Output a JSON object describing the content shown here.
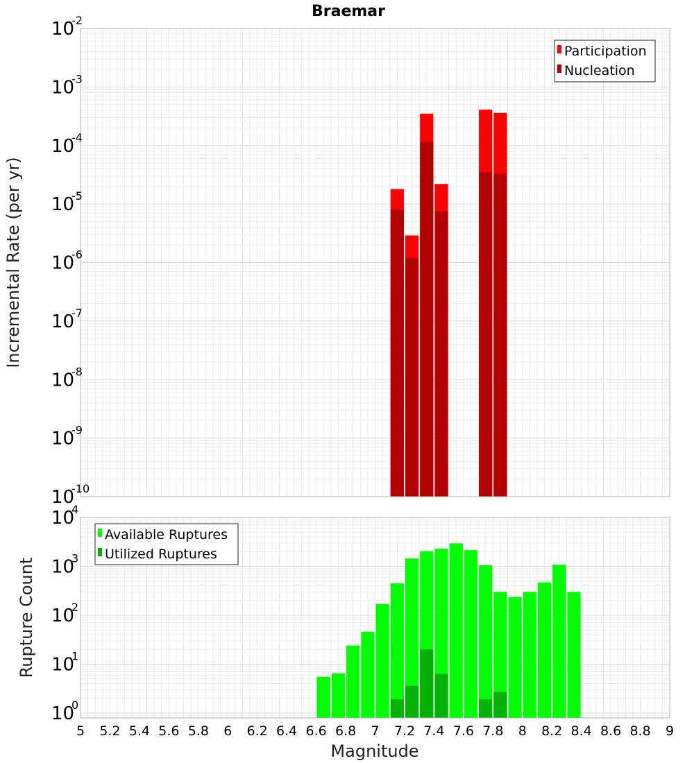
{
  "chart_data": {
    "title": "Braemar",
    "xlabel": "Magnitude",
    "xlim": [
      5,
      9
    ],
    "xticks": [
      "5",
      "5.2",
      "5.4",
      "5.6",
      "5.8",
      "6",
      "6.2",
      "6.4",
      "6.6",
      "6.8",
      "7",
      "7.2",
      "7.4",
      "7.6",
      "7.8",
      "8",
      "8.2",
      "8.4",
      "8.6",
      "8.8",
      "9"
    ],
    "bin_width": 0.1,
    "grid": true,
    "panels": [
      {
        "type": "bar",
        "ylabel": "Incremental Rate (per yr)",
        "yscale": "log",
        "ylim_exp": [
          -10,
          -2
        ],
        "yticks": [
          {
            "base": "10",
            "exp": "-2"
          },
          {
            "base": "10",
            "exp": "-3"
          },
          {
            "base": "10",
            "exp": "-4"
          },
          {
            "base": "10",
            "exp": "-5"
          },
          {
            "base": "10",
            "exp": "-6"
          },
          {
            "base": "10",
            "exp": "-7"
          },
          {
            "base": "10",
            "exp": "-8"
          },
          {
            "base": "10",
            "exp": "-9"
          },
          {
            "base": "10",
            "exp": "-10"
          }
        ],
        "legend_position": "top-right",
        "series": [
          {
            "name": "Participation",
            "color": "#ff0000",
            "points": [
              {
                "x": 7.15,
                "y": 1.8e-05
              },
              {
                "x": 7.25,
                "y": 2.9e-06
              },
              {
                "x": 7.35,
                "y": 0.00035
              },
              {
                "x": 7.45,
                "y": 2.2e-05
              },
              {
                "x": 7.75,
                "y": 0.00041
              },
              {
                "x": 7.85,
                "y": 0.00036
              }
            ]
          },
          {
            "name": "Nucleation",
            "color": "#b30000",
            "points": [
              {
                "x": 7.15,
                "y": 8e-06
              },
              {
                "x": 7.25,
                "y": 1.2e-06
              },
              {
                "x": 7.35,
                "y": 0.000115
              },
              {
                "x": 7.45,
                "y": 7.5e-06
              },
              {
                "x": 7.75,
                "y": 3.5e-05
              },
              {
                "x": 7.85,
                "y": 3.3e-05
              }
            ]
          }
        ]
      },
      {
        "type": "bar",
        "ylabel": "Rupture Count",
        "yscale": "log",
        "ylim_exp": [
          -0.1,
          4
        ],
        "yticks": [
          {
            "base": "10",
            "exp": "4"
          },
          {
            "base": "10",
            "exp": "3"
          },
          {
            "base": "10",
            "exp": "2"
          },
          {
            "base": "10",
            "exp": "1"
          },
          {
            "base": "10",
            "exp": "0"
          }
        ],
        "legend_position": "top-left",
        "series": [
          {
            "name": "Available Ruptures",
            "color": "#00ff00",
            "points": [
              {
                "x": 6.65,
                "y": 5.5
              },
              {
                "x": 6.75,
                "y": 6.5
              },
              {
                "x": 6.85,
                "y": 24
              },
              {
                "x": 6.95,
                "y": 46
              },
              {
                "x": 7.05,
                "y": 170
              },
              {
                "x": 7.15,
                "y": 450
              },
              {
                "x": 7.25,
                "y": 1450
              },
              {
                "x": 7.35,
                "y": 2050
              },
              {
                "x": 7.45,
                "y": 2300
              },
              {
                "x": 7.55,
                "y": 2950
              },
              {
                "x": 7.65,
                "y": 2150
              },
              {
                "x": 7.75,
                "y": 1050
              },
              {
                "x": 7.85,
                "y": 300
              },
              {
                "x": 7.95,
                "y": 235
              },
              {
                "x": 8.05,
                "y": 300
              },
              {
                "x": 8.15,
                "y": 470
              },
              {
                "x": 8.25,
                "y": 1080
              },
              {
                "x": 8.35,
                "y": 300
              }
            ]
          },
          {
            "name": "Utilized Ruptures",
            "color": "#00b300",
            "points": [
              {
                "x": 7.15,
                "y": 1.9
              },
              {
                "x": 7.25,
                "y": 3.6
              },
              {
                "x": 7.35,
                "y": 20
              },
              {
                "x": 7.45,
                "y": 6.3
              },
              {
                "x": 7.75,
                "y": 1.9
              },
              {
                "x": 7.85,
                "y": 2.7
              }
            ]
          }
        ]
      }
    ]
  }
}
